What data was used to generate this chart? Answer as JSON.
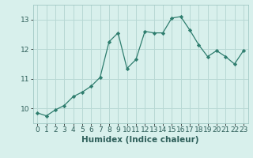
{
  "x": [
    0,
    1,
    2,
    3,
    4,
    5,
    6,
    7,
    8,
    9,
    10,
    11,
    12,
    13,
    14,
    15,
    16,
    17,
    18,
    19,
    20,
    21,
    22,
    23
  ],
  "y": [
    9.85,
    9.75,
    9.95,
    10.1,
    10.4,
    10.55,
    10.75,
    11.05,
    12.25,
    12.55,
    11.35,
    11.65,
    12.6,
    12.55,
    12.55,
    13.05,
    13.1,
    12.65,
    12.15,
    11.75,
    11.95,
    11.75,
    11.5,
    11.95
  ],
  "line_color": "#2e7d6e",
  "marker": "D",
  "marker_size": 2.2,
  "bg_color": "#d8f0ec",
  "grid_color": "#b8d8d4",
  "xlabel": "Humidex (Indice chaleur)",
  "ylim": [
    9.5,
    13.5
  ],
  "xlim": [
    -0.5,
    23.5
  ],
  "yticks": [
    10,
    11,
    12,
    13
  ],
  "xticks": [
    0,
    1,
    2,
    3,
    4,
    5,
    6,
    7,
    8,
    9,
    10,
    11,
    12,
    13,
    14,
    15,
    16,
    17,
    18,
    19,
    20,
    21,
    22,
    23
  ],
  "tick_fontsize": 6.5,
  "xlabel_fontsize": 7.5,
  "ylabel_fontsize": 6.5
}
